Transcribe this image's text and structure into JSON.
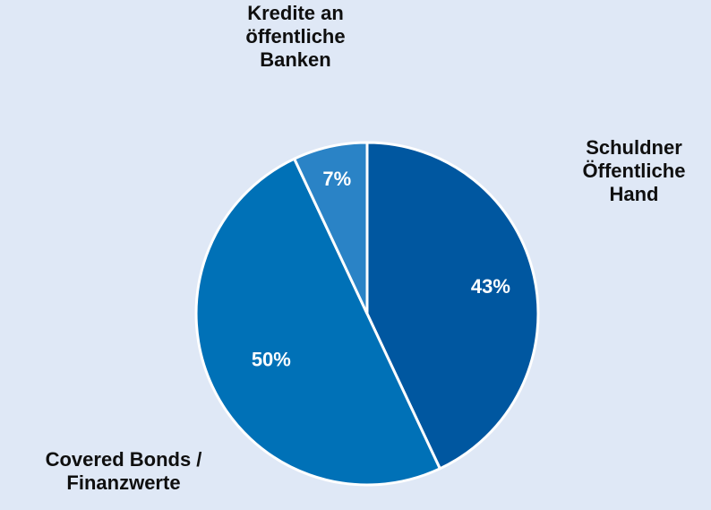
{
  "chart_data": {
    "type": "pie",
    "slices": [
      {
        "label_lines": [
          "Schuldner",
          "Öffentliche",
          "Hand"
        ],
        "value": 43,
        "value_label": "43%",
        "color": "#0057a0"
      },
      {
        "label_lines": [
          "Covered Bonds /",
          "Finanzwerte"
        ],
        "value": 50,
        "value_label": "50%",
        "color": "#0071b7"
      },
      {
        "label_lines": [
          "Kredite an",
          "öffentliche",
          "Banken"
        ],
        "value": 7,
        "value_label": "7%",
        "color": "#2a83c6"
      }
    ],
    "start_angle_deg": 0,
    "direction": "clockwise",
    "title": "",
    "legend": "none",
    "background": "#dfe8f6"
  }
}
